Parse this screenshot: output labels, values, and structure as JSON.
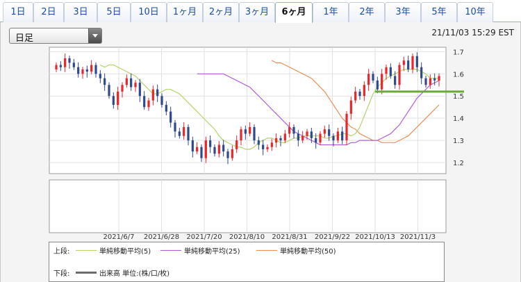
{
  "tabs": [
    {
      "label": "1日",
      "active": false
    },
    {
      "label": "2日",
      "active": false
    },
    {
      "label": "3日",
      "active": false
    },
    {
      "label": "5日",
      "active": false
    },
    {
      "label": "10日",
      "active": false
    },
    {
      "label": "1ヶ月",
      "active": false
    },
    {
      "label": "2ヶ月",
      "active": false
    },
    {
      "label": "3ヶ月",
      "active": false
    },
    {
      "label": "6ヶ月",
      "active": true
    },
    {
      "label": "1年",
      "active": false
    },
    {
      "label": "2年",
      "active": false
    },
    {
      "label": "3年",
      "active": false
    },
    {
      "label": "5年",
      "active": false
    },
    {
      "label": "10年",
      "active": false
    }
  ],
  "period_select": {
    "value": "日足"
  },
  "timestamp": "21/11/03 15:29 EST",
  "legend": {
    "upper_label": "上段:",
    "lower_label": "下段:",
    "ma5": "単純移動平均(5)",
    "ma25": "単純移動平均(25)",
    "ma50": "単純移動平均(50)",
    "volume": "出来高 単位:(株/口/枚)"
  },
  "colors": {
    "up": "#e8262b",
    "down": "#2e4a8a",
    "ma5": "#b4d36a",
    "ma25": "#b25ed8",
    "ma50": "#ef8d54",
    "support": "#6aa83a",
    "volume_swatch": "#6b6b6b"
  },
  "chart_data": {
    "type": "candlestick",
    "ylim": [
      1.15,
      1.72
    ],
    "y_ticks": [
      "1.7",
      "1.6",
      "1.5",
      "1.4",
      "1.3",
      "1.2"
    ],
    "x_tick_labels": [
      "2021/6/7",
      "2021/6/28",
      "2021/7/20",
      "2021/8/10",
      "2021/8/31",
      "2021/9/22",
      "2021/10/13",
      "2021/11/3"
    ],
    "closes": [
      1.64,
      1.63,
      1.67,
      1.65,
      1.63,
      1.6,
      1.62,
      1.61,
      1.64,
      1.6,
      1.58,
      1.55,
      1.5,
      1.46,
      1.52,
      1.55,
      1.58,
      1.54,
      1.56,
      1.5,
      1.45,
      1.48,
      1.53,
      1.5,
      1.46,
      1.43,
      1.38,
      1.34,
      1.32,
      1.36,
      1.3,
      1.25,
      1.27,
      1.22,
      1.3,
      1.27,
      1.24,
      1.28,
      1.25,
      1.22,
      1.26,
      1.3,
      1.35,
      1.33,
      1.36,
      1.3,
      1.28,
      1.26,
      1.27,
      1.29,
      1.31,
      1.3,
      1.33,
      1.36,
      1.33,
      1.3,
      1.32,
      1.34,
      1.31,
      1.29,
      1.33,
      1.35,
      1.32,
      1.3,
      1.34,
      1.3,
      1.42,
      1.48,
      1.52,
      1.5,
      1.55,
      1.6,
      1.57,
      1.53,
      1.6,
      1.63,
      1.59,
      1.55,
      1.64,
      1.66,
      1.62,
      1.68,
      1.63,
      1.58,
      1.55,
      1.58,
      1.57,
      1.59
    ],
    "ma5": [
      1.64,
      1.63,
      1.64,
      1.64,
      1.63,
      1.62,
      1.61,
      1.6,
      1.59,
      1.57,
      1.55,
      1.53,
      1.51,
      1.51,
      1.52,
      1.53,
      1.53,
      1.52,
      1.51,
      1.49,
      1.47,
      1.45,
      1.43,
      1.41,
      1.39,
      1.37,
      1.35,
      1.32,
      1.3,
      1.29,
      1.28,
      1.27,
      1.27,
      1.26,
      1.26,
      1.27,
      1.29,
      1.3,
      1.31,
      1.31,
      1.3,
      1.29,
      1.29,
      1.3,
      1.31,
      1.31,
      1.32,
      1.32,
      1.32,
      1.32,
      1.32,
      1.31,
      1.31,
      1.32,
      1.32,
      1.33,
      1.33,
      1.32,
      1.33,
      1.36,
      1.41,
      1.46,
      1.51,
      1.54,
      1.56,
      1.58,
      1.59,
      1.6,
      1.61,
      1.62,
      1.62,
      1.62,
      1.62,
      1.61,
      1.6,
      1.58,
      1.58,
      1.58
    ],
    "ma25": [
      1.6,
      1.6,
      1.6,
      1.6,
      1.6,
      1.6,
      1.6,
      1.59,
      1.58,
      1.57,
      1.56,
      1.55,
      1.54,
      1.52,
      1.5,
      1.48,
      1.46,
      1.44,
      1.42,
      1.4,
      1.38,
      1.36,
      1.34,
      1.33,
      1.32,
      1.31,
      1.3,
      1.29,
      1.28,
      1.28,
      1.28,
      1.28,
      1.28,
      1.28,
      1.28,
      1.29,
      1.29,
      1.3,
      1.3,
      1.3,
      1.3,
      1.3,
      1.31,
      1.32,
      1.33,
      1.35,
      1.37,
      1.4,
      1.43,
      1.46,
      1.49,
      1.51,
      1.53,
      1.55,
      1.56,
      1.57
    ],
    "ma50": [
      1.66,
      1.65,
      1.65,
      1.64,
      1.63,
      1.62,
      1.61,
      1.6,
      1.59,
      1.58,
      1.56,
      1.54,
      1.52,
      1.49,
      1.46,
      1.43,
      1.4,
      1.38,
      1.36,
      1.35,
      1.33,
      1.32,
      1.31,
      1.3,
      1.3,
      1.29,
      1.29,
      1.29,
      1.29,
      1.3,
      1.31,
      1.32,
      1.34,
      1.36,
      1.38,
      1.4,
      1.42,
      1.44,
      1.46
    ],
    "support_level": 1.52
  }
}
